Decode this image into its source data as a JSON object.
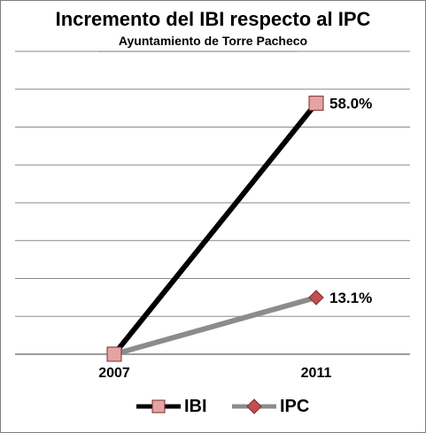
{
  "chart_data": {
    "type": "line",
    "title": "Incremento del IBI respecto al IPC",
    "subtitle": "Ayuntamiento de Torre Pacheco",
    "xlabel": "",
    "ylabel": "",
    "categories": [
      "2007",
      "2011"
    ],
    "ylim": [
      0,
      0.7
    ],
    "grid": true,
    "legend_position": "bottom",
    "series": [
      {
        "name": "IBI",
        "values": [
          0,
          0.58
        ],
        "data_labels": [
          "",
          "58.0%"
        ],
        "line_color": "#000000",
        "marker": "square",
        "marker_color": "#e6a3a3"
      },
      {
        "name": "IPC",
        "values": [
          0,
          0.131
        ],
        "data_labels": [
          "",
          "13.1%"
        ],
        "line_color": "#8c8c8c",
        "marker": "diamond",
        "marker_color": "#c0504d"
      }
    ]
  }
}
